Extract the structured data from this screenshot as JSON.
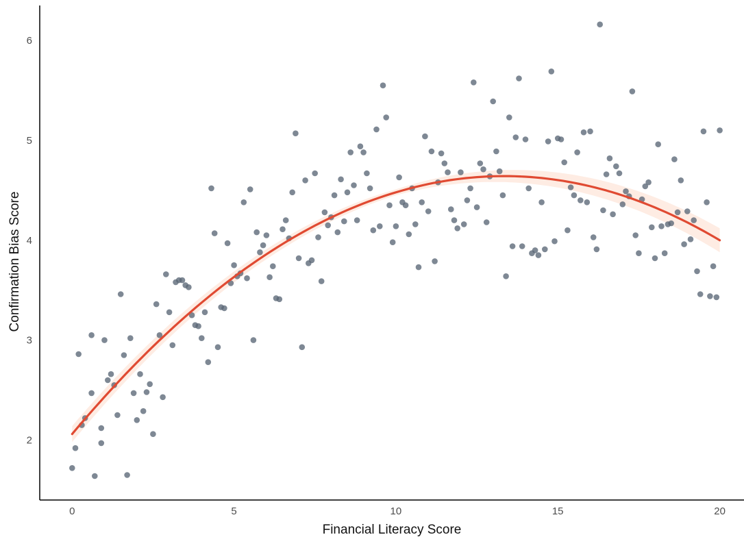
{
  "chart_data": {
    "type": "scatter",
    "xlabel": "Financial Literacy Score",
    "ylabel": "Confirmation Bias Score",
    "xlim": [
      -1.0,
      20.75
    ],
    "ylim": [
      1.4,
      6.35
    ],
    "xticks": [
      0,
      5,
      10,
      15,
      20
    ],
    "yticks": [
      2,
      3,
      4,
      5,
      6
    ],
    "grid": false,
    "point_color": "#5a6776",
    "fit_color": "#e04a32",
    "band_color": "#fde5d9",
    "fit": {
      "model": "quadratic",
      "x_range": [
        0,
        20
      ],
      "coefficients": [
        2.06,
        0.387,
        -0.0145
      ],
      "band_halfwidth": [
        0.08,
        0.03,
        0.12
      ]
    },
    "points": [
      [
        0.0,
        1.72
      ],
      [
        0.1,
        1.92
      ],
      [
        0.2,
        2.86
      ],
      [
        0.3,
        2.15
      ],
      [
        0.4,
        2.22
      ],
      [
        0.6,
        3.05
      ],
      [
        0.6,
        2.47
      ],
      [
        0.7,
        1.64
      ],
      [
        0.9,
        1.97
      ],
      [
        0.9,
        2.12
      ],
      [
        1.0,
        3.0
      ],
      [
        1.1,
        2.6
      ],
      [
        1.2,
        2.66
      ],
      [
        1.3,
        2.55
      ],
      [
        1.4,
        2.25
      ],
      [
        1.5,
        3.46
      ],
      [
        1.6,
        2.85
      ],
      [
        1.7,
        1.65
      ],
      [
        1.8,
        3.02
      ],
      [
        1.9,
        2.47
      ],
      [
        2.0,
        2.2
      ],
      [
        2.1,
        2.66
      ],
      [
        2.2,
        2.29
      ],
      [
        2.3,
        2.48
      ],
      [
        2.4,
        2.56
      ],
      [
        2.5,
        2.06
      ],
      [
        2.6,
        3.36
      ],
      [
        2.7,
        3.05
      ],
      [
        2.8,
        2.43
      ],
      [
        2.9,
        3.66
      ],
      [
        3.0,
        3.28
      ],
      [
        3.1,
        2.95
      ],
      [
        3.2,
        3.58
      ],
      [
        3.3,
        3.6
      ],
      [
        3.4,
        3.6
      ],
      [
        3.5,
        3.55
      ],
      [
        3.6,
        3.53
      ],
      [
        3.7,
        3.25
      ],
      [
        3.8,
        3.15
      ],
      [
        3.9,
        3.14
      ],
      [
        4.0,
        3.02
      ],
      [
        4.1,
        3.28
      ],
      [
        4.2,
        2.78
      ],
      [
        4.3,
        4.52
      ],
      [
        4.4,
        4.07
      ],
      [
        4.5,
        2.93
      ],
      [
        4.6,
        3.33
      ],
      [
        4.7,
        3.32
      ],
      [
        4.8,
        3.97
      ],
      [
        4.9,
        3.57
      ],
      [
        5.0,
        3.75
      ],
      [
        5.1,
        3.64
      ],
      [
        5.2,
        3.67
      ],
      [
        5.3,
        4.38
      ],
      [
        5.4,
        3.62
      ],
      [
        5.5,
        4.51
      ],
      [
        5.6,
        3.0
      ],
      [
        5.7,
        4.08
      ],
      [
        5.8,
        3.88
      ],
      [
        5.9,
        3.95
      ],
      [
        6.0,
        4.05
      ],
      [
        6.1,
        3.63
      ],
      [
        6.2,
        3.74
      ],
      [
        6.3,
        3.42
      ],
      [
        6.4,
        3.41
      ],
      [
        6.5,
        4.11
      ],
      [
        6.6,
        4.2
      ],
      [
        6.7,
        4.02
      ],
      [
        6.8,
        4.48
      ],
      [
        6.9,
        5.07
      ],
      [
        7.0,
        3.82
      ],
      [
        7.1,
        2.93
      ],
      [
        7.2,
        4.6
      ],
      [
        7.3,
        3.77
      ],
      [
        7.4,
        3.8
      ],
      [
        7.5,
        4.67
      ],
      [
        7.6,
        4.03
      ],
      [
        7.7,
        3.59
      ],
      [
        7.8,
        4.28
      ],
      [
        7.9,
        4.15
      ],
      [
        8.0,
        4.23
      ],
      [
        8.1,
        4.45
      ],
      [
        8.2,
        4.08
      ],
      [
        8.3,
        4.61
      ],
      [
        8.4,
        4.19
      ],
      [
        8.5,
        4.48
      ],
      [
        8.6,
        4.88
      ],
      [
        8.7,
        4.55
      ],
      [
        8.8,
        4.2
      ],
      [
        8.9,
        4.94
      ],
      [
        9.0,
        4.88
      ],
      [
        9.1,
        4.67
      ],
      [
        9.2,
        4.52
      ],
      [
        9.3,
        4.1
      ],
      [
        9.4,
        5.11
      ],
      [
        9.5,
        4.14
      ],
      [
        9.6,
        5.55
      ],
      [
        9.7,
        5.23
      ],
      [
        9.8,
        4.35
      ],
      [
        9.9,
        3.98
      ],
      [
        10.0,
        4.14
      ],
      [
        10.1,
        4.63
      ],
      [
        10.2,
        4.38
      ],
      [
        10.3,
        4.35
      ],
      [
        10.4,
        4.06
      ],
      [
        10.5,
        4.52
      ],
      [
        10.6,
        4.16
      ],
      [
        10.7,
        3.73
      ],
      [
        10.8,
        4.38
      ],
      [
        10.9,
        5.04
      ],
      [
        11.0,
        4.29
      ],
      [
        11.1,
        4.89
      ],
      [
        11.2,
        3.79
      ],
      [
        11.3,
        4.58
      ],
      [
        11.4,
        4.87
      ],
      [
        11.5,
        4.77
      ],
      [
        11.6,
        4.68
      ],
      [
        11.7,
        4.31
      ],
      [
        11.8,
        4.2
      ],
      [
        11.9,
        4.12
      ],
      [
        12.0,
        4.68
      ],
      [
        12.1,
        4.16
      ],
      [
        12.2,
        4.4
      ],
      [
        12.3,
        4.52
      ],
      [
        12.4,
        5.58
      ],
      [
        12.5,
        4.33
      ],
      [
        12.6,
        4.77
      ],
      [
        12.7,
        4.71
      ],
      [
        12.8,
        4.18
      ],
      [
        12.9,
        4.64
      ],
      [
        13.0,
        5.39
      ],
      [
        13.1,
        4.89
      ],
      [
        13.2,
        4.69
      ],
      [
        13.3,
        4.45
      ],
      [
        13.4,
        3.64
      ],
      [
        13.5,
        5.23
      ],
      [
        13.6,
        3.94
      ],
      [
        13.7,
        5.03
      ],
      [
        13.8,
        5.62
      ],
      [
        13.9,
        3.94
      ],
      [
        14.0,
        5.01
      ],
      [
        14.1,
        4.52
      ],
      [
        14.2,
        3.87
      ],
      [
        14.3,
        3.9
      ],
      [
        14.4,
        3.85
      ],
      [
        14.5,
        4.38
      ],
      [
        14.6,
        3.91
      ],
      [
        14.7,
        4.99
      ],
      [
        14.8,
        5.69
      ],
      [
        14.9,
        3.99
      ],
      [
        15.0,
        5.02
      ],
      [
        15.1,
        5.01
      ],
      [
        15.2,
        4.78
      ],
      [
        15.3,
        4.1
      ],
      [
        15.4,
        4.53
      ],
      [
        15.5,
        4.45
      ],
      [
        15.6,
        4.88
      ],
      [
        15.7,
        4.4
      ],
      [
        15.8,
        5.08
      ],
      [
        15.9,
        4.38
      ],
      [
        16.0,
        5.09
      ],
      [
        16.1,
        4.03
      ],
      [
        16.2,
        3.91
      ],
      [
        16.3,
        6.16
      ],
      [
        16.4,
        4.3
      ],
      [
        16.5,
        4.66
      ],
      [
        16.6,
        4.82
      ],
      [
        16.7,
        4.26
      ],
      [
        16.8,
        4.74
      ],
      [
        16.9,
        4.67
      ],
      [
        17.0,
        4.36
      ],
      [
        17.1,
        4.49
      ],
      [
        17.2,
        4.44
      ],
      [
        17.3,
        5.49
      ],
      [
        17.4,
        4.05
      ],
      [
        17.5,
        3.87
      ],
      [
        17.6,
        4.41
      ],
      [
        17.7,
        4.54
      ],
      [
        17.8,
        4.58
      ],
      [
        17.9,
        4.13
      ],
      [
        18.0,
        3.82
      ],
      [
        18.1,
        4.96
      ],
      [
        18.2,
        4.14
      ],
      [
        18.3,
        3.87
      ],
      [
        18.4,
        4.16
      ],
      [
        18.5,
        4.17
      ],
      [
        18.6,
        4.81
      ],
      [
        18.7,
        4.28
      ],
      [
        18.8,
        4.6
      ],
      [
        18.9,
        3.96
      ],
      [
        19.0,
        4.29
      ],
      [
        19.1,
        4.01
      ],
      [
        19.2,
        4.2
      ],
      [
        19.3,
        3.69
      ],
      [
        19.4,
        3.46
      ],
      [
        19.5,
        5.09
      ],
      [
        19.6,
        4.38
      ],
      [
        19.7,
        3.44
      ],
      [
        19.8,
        3.74
      ],
      [
        19.9,
        3.43
      ],
      [
        20.0,
        5.1
      ]
    ]
  }
}
